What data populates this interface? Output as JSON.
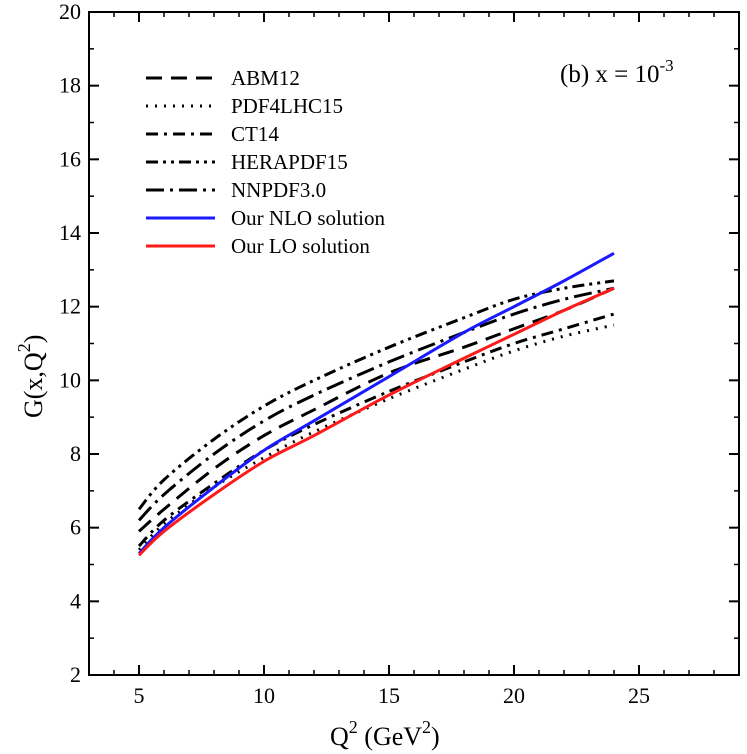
{
  "chart_data": {
    "type": "line",
    "title": "",
    "annotation": {
      "prefix": "(b) x = 10",
      "exponent": "-3"
    },
    "xlabel": {
      "base": "Q",
      "sup": "2",
      "rest": " (GeV",
      "sup2": "2",
      "close": ")"
    },
    "ylabel": {
      "base": "G(x,Q",
      "sup": "2",
      "close": ")"
    },
    "xlim": [
      3,
      29
    ],
    "ylim": [
      2,
      20
    ],
    "x_ticks": [
      5,
      10,
      15,
      20,
      25
    ],
    "y_ticks": [
      2,
      4,
      6,
      8,
      10,
      12,
      14,
      16,
      18,
      20
    ],
    "legend_position": "top-left",
    "series": [
      {
        "name": "ABM12",
        "color": "#000000",
        "style": "dashed",
        "x": [
          5,
          6,
          8,
          10,
          12,
          15,
          18,
          20,
          22,
          24
        ],
        "y": [
          5.9,
          6.5,
          7.6,
          8.5,
          9.2,
          10.2,
          10.9,
          11.4,
          11.9,
          12.5
        ]
      },
      {
        "name": "PDF4LHC15",
        "color": "#000000",
        "style": "dotted",
        "x": [
          5,
          6,
          8,
          10,
          12,
          15,
          18,
          20,
          22,
          24
        ],
        "y": [
          5.4,
          6.1,
          7.1,
          7.9,
          8.6,
          9.5,
          10.3,
          10.8,
          11.2,
          11.5
        ]
      },
      {
        "name": "CT14",
        "color": "#000000",
        "style": "dashdot",
        "x": [
          5,
          6,
          8,
          10,
          12,
          15,
          18,
          20,
          22,
          24
        ],
        "y": [
          5.5,
          6.2,
          7.2,
          8.1,
          8.8,
          9.7,
          10.5,
          11.0,
          11.4,
          11.8
        ]
      },
      {
        "name": "HERAPDF15",
        "color": "#000000",
        "style": "dashdotdot",
        "x": [
          5,
          6,
          8,
          10,
          12,
          15,
          18,
          20,
          22,
          24
        ],
        "y": [
          6.5,
          7.3,
          8.4,
          9.3,
          10.0,
          10.9,
          11.7,
          12.2,
          12.5,
          12.7
        ]
      },
      {
        "name": "NNPDF3.0",
        "color": "#000000",
        "style": "dashdotlong",
        "x": [
          5,
          6,
          8,
          10,
          12,
          15,
          18,
          20,
          22,
          24
        ],
        "y": [
          6.2,
          6.9,
          8.0,
          8.9,
          9.6,
          10.5,
          11.3,
          11.8,
          12.2,
          12.5
        ]
      },
      {
        "name": "Our NLO solution",
        "color": "#1a1aff",
        "style": "solid",
        "x": [
          5,
          6,
          8,
          10,
          12,
          15,
          18,
          20,
          22,
          24
        ],
        "y": [
          5.3,
          6.0,
          7.1,
          8.1,
          8.9,
          10.1,
          11.3,
          12.0,
          12.7,
          13.45
        ]
      },
      {
        "name": "Our LO solution",
        "color": "#ff1a1a",
        "style": "solid",
        "x": [
          5,
          6,
          8,
          10,
          12,
          15,
          18,
          20,
          22,
          24
        ],
        "y": [
          5.25,
          5.9,
          6.9,
          7.8,
          8.5,
          9.6,
          10.6,
          11.25,
          11.9,
          12.5
        ]
      }
    ]
  }
}
